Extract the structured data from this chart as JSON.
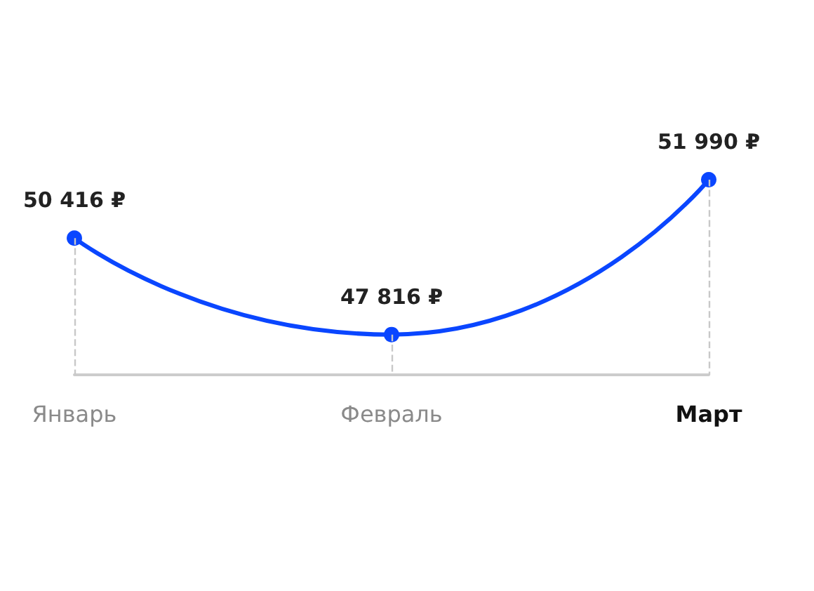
{
  "chart_data": {
    "type": "line",
    "categories": [
      "Январь",
      "Февраль",
      "Март"
    ],
    "series": [
      {
        "color": "#0a46ff",
        "values": [
          50416,
          47816,
          51990
        ],
        "value_labels": [
          "50 416 ₽",
          "47 816 ₽",
          "51 990 ₽"
        ]
      }
    ],
    "marker": "circle",
    "grid": "x",
    "tick_labels": "x"
  }
}
